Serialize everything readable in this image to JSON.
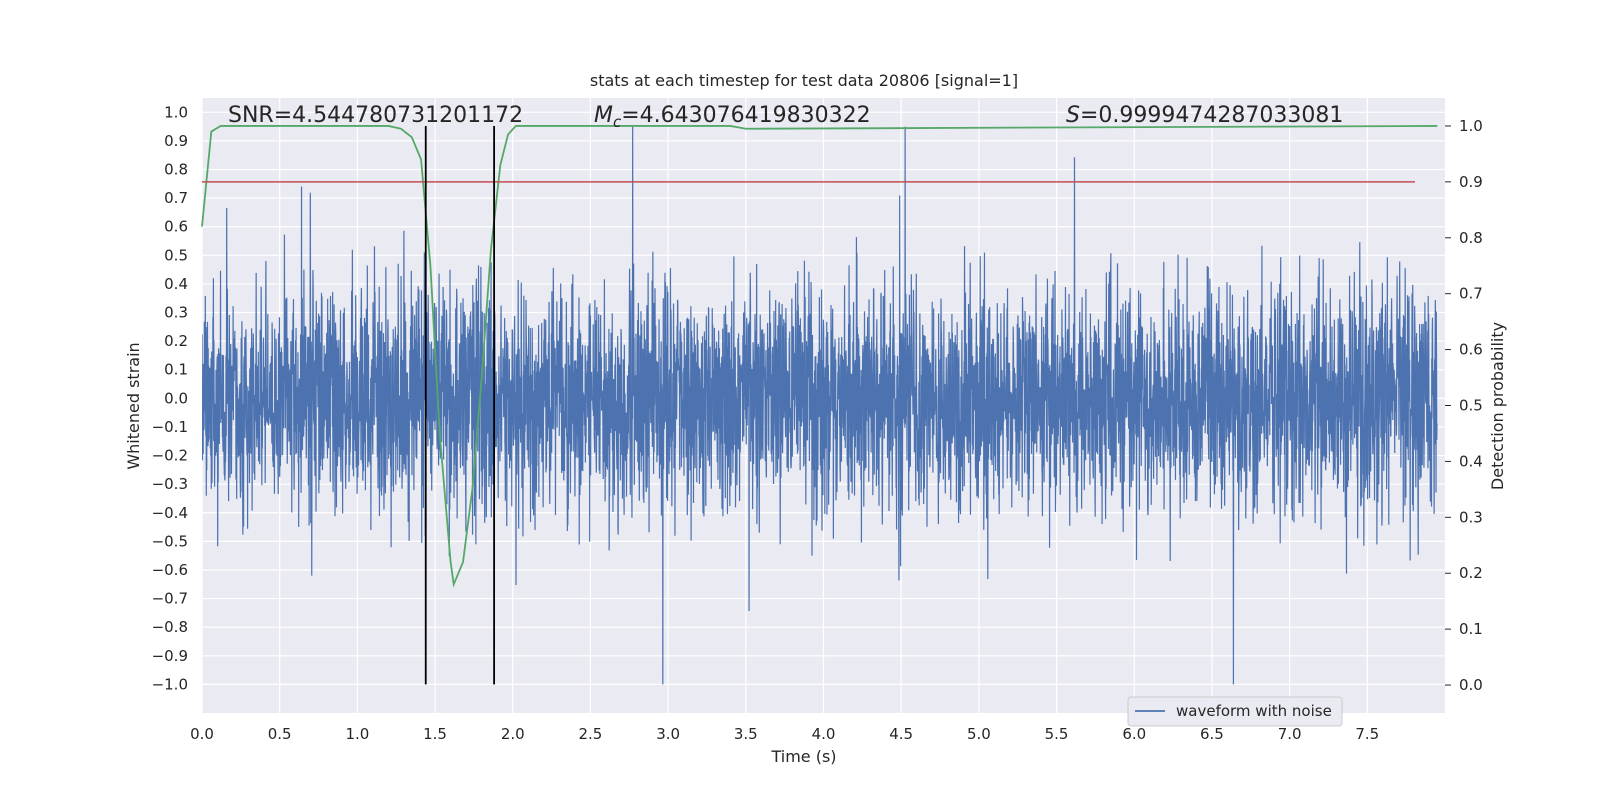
{
  "chart_data": {
    "type": "line",
    "title": "stats at each timestep for test data 20806 [signal=1]",
    "xlabel": "Time (s)",
    "ylabel_left": "Whitened strain",
    "ylabel_right": "Detection probability",
    "xlim": [
      0.0,
      8.0
    ],
    "ylim_left": [
      -1.1,
      1.05
    ],
    "ylim_right": [
      -0.05,
      1.05
    ],
    "x_ticks": [
      "0.0",
      "0.5",
      "1.0",
      "1.5",
      "2.0",
      "2.5",
      "3.0",
      "3.5",
      "4.0",
      "4.5",
      "5.0",
      "5.5",
      "6.0",
      "6.5",
      "7.0",
      "7.5"
    ],
    "y_ticks_left": [
      "1.0",
      "0.9",
      "0.8",
      "0.7",
      "0.6",
      "0.5",
      "0.4",
      "0.3",
      "0.2",
      "0.1",
      "0.0",
      "-0.1",
      "-0.2",
      "-0.3",
      "-0.4",
      "-0.5",
      "-0.6",
      "-0.7",
      "-0.8",
      "-0.9",
      "-1.0"
    ],
    "y_ticks_right": [
      "1.0",
      "0.9",
      "0.8",
      "0.7",
      "0.6",
      "0.5",
      "0.4",
      "0.3",
      "0.2",
      "0.1",
      "0.0"
    ],
    "stats": {
      "snr": "SNR=4.544780731201172",
      "mc": "=4.643076419830322",
      "s": "=0.9999474287033081"
    },
    "threshold": 0.9,
    "vlines": [
      1.44,
      1.88
    ],
    "series": [
      {
        "name": "waveform with noise",
        "color": "#4c72b0",
        "description": "noisy whitened strain, amplitude roughly within -1.0 to 0.95"
      },
      {
        "name": "detection probability",
        "color": "#55a868",
        "x": [
          0.0,
          0.06,
          0.12,
          1.2,
          1.28,
          1.35,
          1.41,
          1.47,
          1.53,
          1.6,
          1.62,
          1.68,
          1.74,
          1.8,
          1.86,
          1.92,
          1.97,
          2.02,
          3.4,
          3.5,
          7.95
        ],
        "y": [
          0.82,
          0.99,
          1.0,
          1.0,
          0.995,
          0.98,
          0.94,
          0.75,
          0.45,
          0.22,
          0.18,
          0.22,
          0.35,
          0.55,
          0.78,
          0.93,
          0.985,
          1.0,
          1.0,
          0.995,
          1.0
        ]
      }
    ],
    "legend": {
      "label": "waveform with noise",
      "placement": "lower right"
    },
    "colors": {
      "background": "#eaeaf2",
      "grid": "#ffffff",
      "threshold": "#c44e52",
      "vline": "#000000"
    }
  }
}
